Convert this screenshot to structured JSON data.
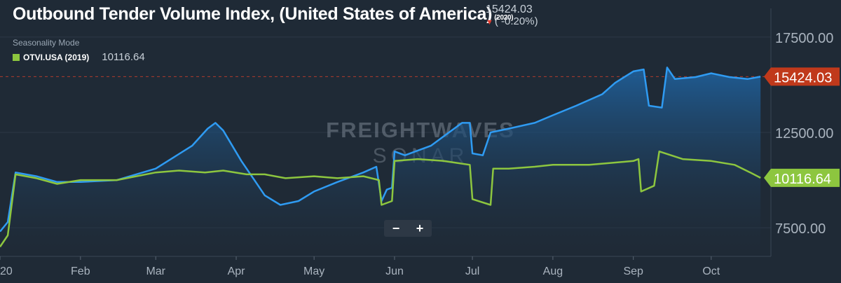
{
  "header": {
    "title": "Outbound Tender Volume Index, (United States of America)",
    "title_year": "(2020)",
    "current_value": "15424.03",
    "change": "( -0.20%)",
    "mode_label": "Seasonality Mode"
  },
  "legend": {
    "series_name": "OTVI.USA (2019)",
    "series_value": "10116.64"
  },
  "watermark": {
    "line1": "FREIGHTWAVES",
    "line2": "SONAR"
  },
  "zoom": {
    "minus": "−",
    "plus": "+"
  },
  "colors": {
    "background": "#1f2a36",
    "series_2020": "#2f9bf2",
    "series_2019": "#8dc63f",
    "badge_2020": "#c0391b",
    "badge_2019": "#8dc63f"
  },
  "chart_data": {
    "type": "area",
    "x_axis": "date",
    "x_range": [
      "2020-01-01",
      "2020-10-24"
    ],
    "ylim": [
      6000,
      19000
    ],
    "y_ticks": [
      7500,
      12500,
      17500
    ],
    "y_tick_labels": [
      "7500.00",
      "12500.00",
      "17500.00"
    ],
    "x_ticks": [
      "2020-01-01",
      "2020-02-01",
      "2020-03-01",
      "2020-04-01",
      "2020-05-01",
      "2020-06-01",
      "2020-07-01",
      "2020-08-01",
      "2020-09-01",
      "2020-10-01"
    ],
    "x_tick_labels": [
      "20",
      "Feb",
      "Mar",
      "Apr",
      "May",
      "Jun",
      "Jul",
      "Aug",
      "Sep",
      "Oct"
    ],
    "reference_line": 15424.03,
    "series": [
      {
        "name": "(2020)",
        "style": "area",
        "last_label": "15424.03",
        "points": [
          [
            "2020-01-01",
            7300
          ],
          [
            "2020-01-04",
            7800
          ],
          [
            "2020-01-07",
            10400
          ],
          [
            "2020-01-15",
            10200
          ],
          [
            "2020-01-23",
            9900
          ],
          [
            "2020-02-01",
            9900
          ],
          [
            "2020-02-15",
            10000
          ],
          [
            "2020-03-01",
            10600
          ],
          [
            "2020-03-08",
            11200
          ],
          [
            "2020-03-15",
            11800
          ],
          [
            "2020-03-21",
            12700
          ],
          [
            "2020-03-24",
            13000
          ],
          [
            "2020-03-27",
            12600
          ],
          [
            "2020-04-03",
            11000
          ],
          [
            "2020-04-08",
            10000
          ],
          [
            "2020-04-12",
            9200
          ],
          [
            "2020-04-18",
            8700
          ],
          [
            "2020-04-25",
            8900
          ],
          [
            "2020-05-01",
            9400
          ],
          [
            "2020-05-10",
            9900
          ],
          [
            "2020-05-20",
            10400
          ],
          [
            "2020-05-25",
            10700
          ],
          [
            "2020-05-27",
            8900
          ],
          [
            "2020-05-29",
            9500
          ],
          [
            "2020-05-31",
            9600
          ],
          [
            "2020-06-01",
            11500
          ],
          [
            "2020-06-05",
            11300
          ],
          [
            "2020-06-15",
            11800
          ],
          [
            "2020-06-22",
            12500
          ],
          [
            "2020-06-27",
            13000
          ],
          [
            "2020-06-30",
            13000
          ],
          [
            "2020-07-01",
            11400
          ],
          [
            "2020-07-05",
            11300
          ],
          [
            "2020-07-08",
            12500
          ],
          [
            "2020-07-15",
            12700
          ],
          [
            "2020-07-25",
            13000
          ],
          [
            "2020-08-01",
            13400
          ],
          [
            "2020-08-10",
            13900
          ],
          [
            "2020-08-20",
            14500
          ],
          [
            "2020-08-25",
            15100
          ],
          [
            "2020-09-01",
            15700
          ],
          [
            "2020-09-05",
            15800
          ],
          [
            "2020-09-07",
            13900
          ],
          [
            "2020-09-12",
            13800
          ],
          [
            "2020-09-14",
            15900
          ],
          [
            "2020-09-17",
            15300
          ],
          [
            "2020-09-25",
            15400
          ],
          [
            "2020-10-01",
            15600
          ],
          [
            "2020-10-08",
            15400
          ],
          [
            "2020-10-15",
            15300
          ],
          [
            "2020-10-20",
            15424
          ]
        ]
      },
      {
        "name": "OTVI.USA (2019)",
        "style": "line",
        "last_label": "10116.64",
        "points": [
          [
            "2020-01-01",
            6500
          ],
          [
            "2020-01-04",
            7100
          ],
          [
            "2020-01-07",
            10300
          ],
          [
            "2020-01-15",
            10100
          ],
          [
            "2020-01-23",
            9800
          ],
          [
            "2020-02-01",
            10000
          ],
          [
            "2020-02-15",
            10000
          ],
          [
            "2020-03-01",
            10400
          ],
          [
            "2020-03-10",
            10500
          ],
          [
            "2020-03-20",
            10400
          ],
          [
            "2020-03-27",
            10500
          ],
          [
            "2020-04-05",
            10300
          ],
          [
            "2020-04-12",
            10300
          ],
          [
            "2020-04-20",
            10100
          ],
          [
            "2020-05-01",
            10200
          ],
          [
            "2020-05-10",
            10100
          ],
          [
            "2020-05-20",
            10200
          ],
          [
            "2020-05-26",
            10000
          ],
          [
            "2020-05-27",
            8700
          ],
          [
            "2020-05-31",
            8900
          ],
          [
            "2020-06-01",
            11000
          ],
          [
            "2020-06-10",
            11100
          ],
          [
            "2020-06-20",
            11000
          ],
          [
            "2020-06-30",
            10800
          ],
          [
            "2020-07-01",
            9000
          ],
          [
            "2020-07-08",
            8700
          ],
          [
            "2020-07-09",
            10600
          ],
          [
            "2020-07-15",
            10600
          ],
          [
            "2020-07-25",
            10700
          ],
          [
            "2020-08-01",
            10800
          ],
          [
            "2020-08-15",
            10800
          ],
          [
            "2020-09-01",
            11000
          ],
          [
            "2020-09-03",
            11100
          ],
          [
            "2020-09-04",
            9400
          ],
          [
            "2020-09-09",
            9700
          ],
          [
            "2020-09-11",
            11500
          ],
          [
            "2020-09-20",
            11100
          ],
          [
            "2020-10-01",
            11000
          ],
          [
            "2020-10-10",
            10800
          ],
          [
            "2020-10-16",
            10400
          ],
          [
            "2020-10-20",
            10117
          ]
        ]
      }
    ]
  }
}
